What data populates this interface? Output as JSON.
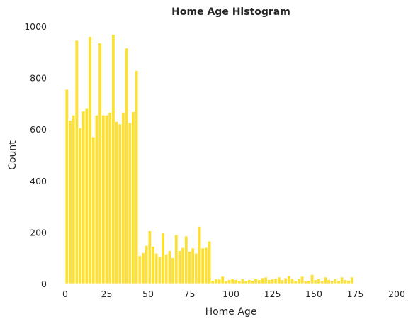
{
  "chart_data": {
    "type": "bar",
    "title": "Home Age Histogram",
    "xlabel": "Home Age",
    "ylabel": "Count",
    "xlim": [
      -3,
      203
    ],
    "ylim": [
      0,
      1000
    ],
    "xticks": [
      0,
      25,
      50,
      75,
      100,
      125,
      150,
      175,
      200
    ],
    "yticks": [
      0,
      200,
      400,
      600,
      800,
      1000
    ],
    "grid": false,
    "bin_width": 2,
    "bins": [
      {
        "x": 0,
        "value": 755
      },
      {
        "x": 2,
        "value": 635
      },
      {
        "x": 4,
        "value": 655
      },
      {
        "x": 6,
        "value": 945
      },
      {
        "x": 8,
        "value": 605
      },
      {
        "x": 10,
        "value": 670
      },
      {
        "x": 12,
        "value": 680
      },
      {
        "x": 14,
        "value": 960
      },
      {
        "x": 16,
        "value": 570
      },
      {
        "x": 18,
        "value": 655
      },
      {
        "x": 20,
        "value": 935
      },
      {
        "x": 22,
        "value": 655
      },
      {
        "x": 24,
        "value": 655
      },
      {
        "x": 26,
        "value": 665
      },
      {
        "x": 28,
        "value": 968
      },
      {
        "x": 30,
        "value": 630
      },
      {
        "x": 32,
        "value": 620
      },
      {
        "x": 34,
        "value": 665
      },
      {
        "x": 36,
        "value": 915
      },
      {
        "x": 38,
        "value": 625
      },
      {
        "x": 40,
        "value": 668
      },
      {
        "x": 42,
        "value": 828
      },
      {
        "x": 44,
        "value": 108
      },
      {
        "x": 46,
        "value": 120
      },
      {
        "x": 48,
        "value": 148
      },
      {
        "x": 50,
        "value": 205
      },
      {
        "x": 52,
        "value": 145
      },
      {
        "x": 54,
        "value": 118
      },
      {
        "x": 56,
        "value": 105
      },
      {
        "x": 58,
        "value": 198
      },
      {
        "x": 60,
        "value": 115
      },
      {
        "x": 62,
        "value": 128
      },
      {
        "x": 64,
        "value": 100
      },
      {
        "x": 66,
        "value": 190
      },
      {
        "x": 68,
        "value": 128
      },
      {
        "x": 70,
        "value": 140
      },
      {
        "x": 72,
        "value": 185
      },
      {
        "x": 74,
        "value": 125
      },
      {
        "x": 76,
        "value": 138
      },
      {
        "x": 78,
        "value": 118
      },
      {
        "x": 80,
        "value": 222
      },
      {
        "x": 82,
        "value": 138
      },
      {
        "x": 84,
        "value": 140
      },
      {
        "x": 86,
        "value": 165
      },
      {
        "x": 88,
        "value": 12
      },
      {
        "x": 90,
        "value": 18
      },
      {
        "x": 92,
        "value": 17
      },
      {
        "x": 94,
        "value": 28
      },
      {
        "x": 96,
        "value": 10
      },
      {
        "x": 98,
        "value": 15
      },
      {
        "x": 100,
        "value": 18
      },
      {
        "x": 102,
        "value": 15
      },
      {
        "x": 104,
        "value": 12
      },
      {
        "x": 106,
        "value": 18
      },
      {
        "x": 108,
        "value": 10
      },
      {
        "x": 110,
        "value": 15
      },
      {
        "x": 112,
        "value": 12
      },
      {
        "x": 114,
        "value": 18
      },
      {
        "x": 116,
        "value": 15
      },
      {
        "x": 118,
        "value": 22
      },
      {
        "x": 120,
        "value": 25
      },
      {
        "x": 122,
        "value": 15
      },
      {
        "x": 124,
        "value": 18
      },
      {
        "x": 126,
        "value": 20
      },
      {
        "x": 128,
        "value": 25
      },
      {
        "x": 130,
        "value": 15
      },
      {
        "x": 132,
        "value": 22
      },
      {
        "x": 134,
        "value": 30
      },
      {
        "x": 136,
        "value": 20
      },
      {
        "x": 138,
        "value": 12
      },
      {
        "x": 140,
        "value": 18
      },
      {
        "x": 142,
        "value": 28
      },
      {
        "x": 144,
        "value": 10
      },
      {
        "x": 146,
        "value": 12
      },
      {
        "x": 148,
        "value": 35
      },
      {
        "x": 150,
        "value": 15
      },
      {
        "x": 152,
        "value": 18
      },
      {
        "x": 154,
        "value": 12
      },
      {
        "x": 156,
        "value": 25
      },
      {
        "x": 158,
        "value": 15
      },
      {
        "x": 160,
        "value": 12
      },
      {
        "x": 162,
        "value": 18
      },
      {
        "x": 164,
        "value": 12
      },
      {
        "x": 166,
        "value": 25
      },
      {
        "x": 168,
        "value": 15
      },
      {
        "x": 170,
        "value": 12
      },
      {
        "x": 172,
        "value": 25
      }
    ],
    "colors": {
      "bar": "#fde036",
      "bar_edge": "#ffffff",
      "text": "#262626",
      "background": "#ffffff"
    }
  }
}
